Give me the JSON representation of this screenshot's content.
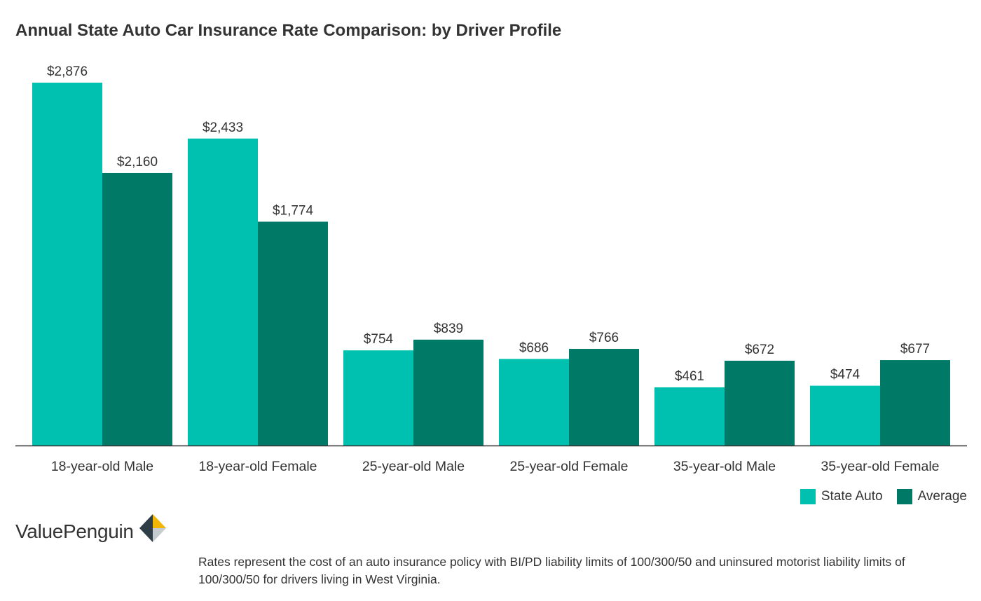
{
  "title": "Annual State Auto Car Insurance Rate Comparison: by Driver Profile",
  "chart_data": {
    "type": "bar",
    "title": "Annual State Auto Car Insurance Rate Comparison: by Driver Profile",
    "categories": [
      "18-year-old Male",
      "18-year-old Female",
      "25-year-old Male",
      "25-year-old Female",
      "35-year-old Male",
      "35-year-old Female"
    ],
    "series": [
      {
        "name": "State Auto",
        "color": "#00c1b0",
        "values": [
          2876,
          2433,
          754,
          686,
          461,
          474
        ],
        "labels": [
          "$2,876",
          "$2,433",
          "$754",
          "$686",
          "$461",
          "$474"
        ]
      },
      {
        "name": "Average",
        "color": "#007a66",
        "values": [
          2160,
          1774,
          839,
          766,
          672,
          677
        ],
        "labels": [
          "$2,160",
          "$1,774",
          "$839",
          "$766",
          "$672",
          "$677"
        ]
      }
    ],
    "ylim": [
      0,
      3000
    ],
    "grid": false,
    "legend_position": "bottom-right"
  },
  "legend": {
    "state_auto": "State Auto",
    "average": "Average"
  },
  "logo": {
    "text": "ValuePenguin"
  },
  "footnote": "Rates represent the cost of an auto insurance policy with BI/PD liability limits of 100/300/50 and uninsured motorist liability limits of 100/300/50 for drivers living in West Virginia."
}
